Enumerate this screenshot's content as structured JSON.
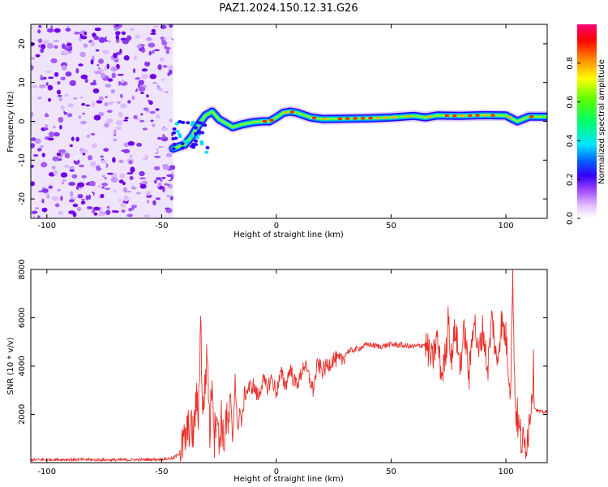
{
  "page_title": "PAZ1.2024.150.12.31.G26",
  "chart_data": [
    {
      "type": "heatmap",
      "title": "PAZ1.2024.150.12.31.G26",
      "xlabel": "Height of straight line (km)",
      "ylabel": "Frequency (Hz)",
      "xlim": [
        -107,
        118
      ],
      "ylim": [
        -25,
        25
      ],
      "xticks": [
        -100,
        -50,
        0,
        50,
        100
      ],
      "xtick_labels": [
        "-100",
        "-50",
        "0",
        "50",
        "100"
      ],
      "yticks": [
        -20,
        -10,
        0,
        10,
        20
      ],
      "ytick_labels": [
        "-20",
        "-10",
        "0",
        "10",
        "20"
      ],
      "noise_region_x": [
        -107,
        -45
      ],
      "ridge_frequency": {
        "x": [
          -45,
          -40,
          -37,
          -34,
          -31,
          -28,
          -25,
          -22,
          -19,
          -15,
          -10,
          -6,
          -3,
          0,
          3,
          6,
          9,
          12,
          15,
          20,
          30,
          40,
          50,
          60,
          65,
          70,
          80,
          90,
          100,
          105,
          110,
          118
        ],
        "y": [
          -7,
          -6,
          -4,
          -1,
          1.5,
          2.5,
          0.5,
          -0.5,
          -1.5,
          -0.8,
          -0.2,
          0.0,
          0.0,
          1.0,
          2.2,
          2.5,
          2.2,
          1.6,
          1.0,
          0.6,
          0.7,
          0.8,
          1.0,
          1.4,
          1.0,
          1.5,
          1.4,
          1.6,
          1.5,
          0.0,
          1.2,
          1.2
        ]
      },
      "colorbar": {
        "label": "Normalized spectral amplitude",
        "range": [
          0,
          1
        ],
        "ticks": [
          0.0,
          0.2,
          0.4,
          0.6,
          0.8
        ],
        "tick_labels": [
          "0.0",
          "0.2",
          "0.4",
          "0.6",
          "0.8"
        ]
      }
    },
    {
      "type": "line",
      "xlabel": "Height of straight line (km)",
      "ylabel": "SNR (10 * v/v)",
      "xlim": [
        -107,
        118
      ],
      "ylim": [
        0,
        8000
      ],
      "xticks": [
        -100,
        -50,
        0,
        50,
        100
      ],
      "xtick_labels": [
        "-100",
        "-50",
        "0",
        "50",
        "100"
      ],
      "yticks": [
        2000,
        4000,
        6000,
        8000
      ],
      "ytick_labels": [
        "2000",
        "4000",
        "6000",
        "8000"
      ],
      "color": "#e8302a",
      "series": [
        {
          "x": [
            -107,
            -90,
            -70,
            -50,
            -45,
            -42,
            -40,
            -38,
            -36,
            -35,
            -34,
            -33,
            -32,
            -31,
            -30,
            -29,
            -28,
            -27,
            -26,
            -25,
            -24,
            -23,
            -22,
            -21,
            -20,
            -19,
            -18,
            -17,
            -16,
            -15,
            -14,
            -12,
            -10,
            -8,
            -6,
            -4,
            -2,
            0,
            2,
            4,
            6,
            8,
            10,
            12,
            14,
            16,
            18,
            20,
            22,
            25,
            28,
            31,
            35,
            40,
            45,
            50,
            55,
            60,
            65,
            68,
            70,
            72,
            74,
            75,
            76,
            78,
            80,
            82,
            84,
            86,
            88,
            90,
            92,
            94,
            96,
            98,
            100,
            102,
            103,
            104,
            106,
            108,
            110,
            112,
            113,
            115,
            118
          ],
          "y": [
            120,
            130,
            110,
            140,
            180,
            400,
            900,
            1500,
            1200,
            2600,
            2000,
            5900,
            1800,
            3500,
            4500,
            1200,
            3800,
            1000,
            2500,
            600,
            2000,
            700,
            1800,
            1400,
            2600,
            900,
            3600,
            1300,
            2200,
            1600,
            2800,
            3100,
            3200,
            2700,
            3400,
            3100,
            3500,
            2900,
            3700,
            3200,
            3900,
            3300,
            3400,
            4100,
            3600,
            3000,
            4100,
            3800,
            4000,
            4300,
            4200,
            4600,
            4700,
            4900,
            4800,
            4900,
            4850,
            4800,
            4900,
            4200,
            5200,
            3600,
            4600,
            6400,
            4200,
            5600,
            4000,
            5500,
            3500,
            6200,
            4400,
            5600,
            3800,
            6100,
            4000,
            5800,
            5200,
            3000,
            8000,
            2500,
            1200,
            600,
            1500,
            3800,
            2200,
            2100,
            2100
          ]
        }
      ]
    }
  ]
}
